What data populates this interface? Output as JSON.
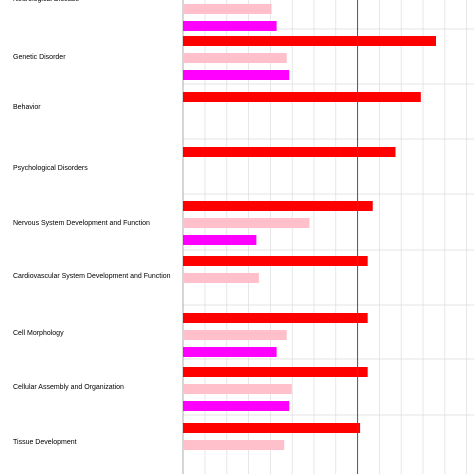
{
  "chart_data": {
    "type": "bar",
    "orientation": "horizontal",
    "xlim": [
      0,
      1
    ],
    "grid": true,
    "threshold_line": 0.69,
    "colors": {
      "series1": "#ff0000",
      "series2": "#ffc0cb",
      "series3": "#ff00ff",
      "grid": "#dddddd",
      "threshold": "#555555"
    },
    "categories": [
      "Neurological Disease",
      "Genetic Disorder",
      "Behavior",
      "Psychological Disorders",
      "Nervous System Development and Function",
      "Cardiovascular System Development and Function",
      "Cell Morphology",
      "Cellular Assembly and Organization",
      "Tissue Development"
    ],
    "series": [
      {
        "values": [
          null,
          1.0,
          0.94,
          0.84,
          0.75,
          0.73,
          0.73,
          0.73,
          0.7
        ]
      },
      {
        "values": [
          0.35,
          0.41,
          null,
          null,
          0.5,
          0.3,
          0.41,
          0.43,
          0.4
        ]
      },
      {
        "values": [
          0.37,
          0.42,
          null,
          null,
          0.29,
          null,
          0.37,
          0.42,
          null
        ]
      }
    ]
  }
}
